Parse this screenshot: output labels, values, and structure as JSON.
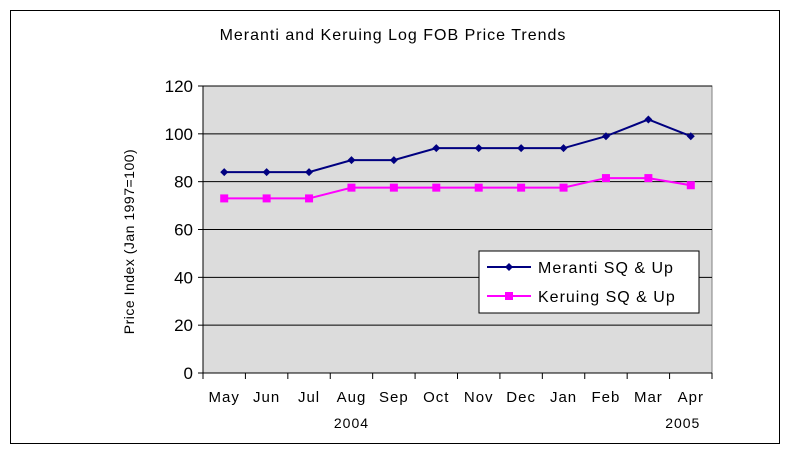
{
  "chart_data": {
    "type": "line",
    "title": "Meranti and Keruing Log FOB Price Trends",
    "ylabel": "Price Index (Jan 1997=100)",
    "xlabel": "",
    "categories": [
      "May",
      "Jun",
      "Jul",
      "Aug",
      "Sep",
      "Oct",
      "Nov",
      "Dec",
      "Jan",
      "Feb",
      "Mar",
      "Apr"
    ],
    "year_labels": [
      "2004",
      "2005"
    ],
    "ylim": [
      0,
      120
    ],
    "yticks": [
      "0",
      "20",
      "40",
      "60",
      "80",
      "100",
      "120"
    ],
    "grid": true,
    "legend_position": "bottom-right",
    "plot_background": "#dcdcdc",
    "series": [
      {
        "name": "Meranti SQ & Up",
        "color": "#000080",
        "marker": "diamond",
        "values": [
          84,
          84,
          84,
          89,
          89,
          94,
          94,
          94,
          94,
          99,
          106,
          99
        ]
      },
      {
        "name": "Keruing SQ & Up",
        "color": "#ff00ff",
        "marker": "square",
        "values": [
          73,
          73,
          73,
          77.5,
          77.5,
          77.5,
          77.5,
          77.5,
          77.5,
          81.5,
          81.5,
          78.5
        ]
      }
    ]
  }
}
